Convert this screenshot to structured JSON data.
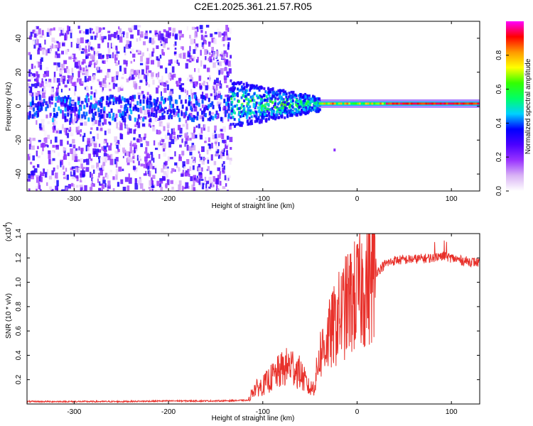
{
  "title": "C2E1.2025.361.21.57.R05",
  "chart_data": [
    {
      "type": "heatmap",
      "xlabel": "Height of straight line (km)",
      "ylabel": "Frequency (Hz)",
      "xlim": [
        -350,
        130
      ],
      "ylim": [
        -50,
        50
      ],
      "xticks": [
        -300,
        -200,
        -100,
        0,
        100
      ],
      "xtick_labels": [
        "-300",
        "-200",
        "-100",
        "0",
        "100"
      ],
      "yticks": [
        -40,
        -20,
        0,
        20,
        40
      ],
      "ytick_labels": [
        "-40",
        "-20",
        "0",
        "20",
        "40"
      ],
      "colorbar": {
        "label": "Normalized spectral amplitude",
        "range": [
          0,
          1
        ],
        "ticks": [
          0.0,
          0.2,
          0.4,
          0.6,
          0.8
        ],
        "tick_labels": [
          "0.0",
          "0.2",
          "0.4",
          "0.6",
          "0.8"
        ],
        "colors": [
          "#ffffff",
          "#d9b3f5",
          "#9933ff",
          "#4b00ff",
          "#0000ff",
          "#00d0ff",
          "#00ff66",
          "#33ff00",
          "#ffff00",
          "#ff9900",
          "#ff0000",
          "#ff00ff"
        ]
      },
      "regions": [
        {
          "x": [
            -350,
            -135
          ],
          "description_level": 0.15,
          "freq_span": [
            -50,
            48
          ]
        },
        {
          "x": [
            -135,
            -40
          ],
          "level": 0.5,
          "freq_span": [
            -10,
            14
          ]
        },
        {
          "x": [
            -40,
            130
          ],
          "level": 0.85,
          "freq_span": [
            0,
            3
          ]
        }
      ]
    },
    {
      "type": "line",
      "xlabel": "Height of straight line (km)",
      "ylabel": "SNR (10 * v/v)",
      "yexponent_label": "(x10",
      "yexponent_value": "4",
      "yexponent_close": ")",
      "xlim": [
        -350,
        130
      ],
      "ylim": [
        0,
        1.4
      ],
      "xticks": [
        -300,
        -200,
        -100,
        0,
        100
      ],
      "xtick_labels": [
        "-300",
        "-200",
        "-100",
        "0",
        "100"
      ],
      "yticks": [
        0.2,
        0.4,
        0.6,
        0.8,
        1.0,
        1.2,
        1.4
      ],
      "ytick_labels": [
        "0.2",
        "0.4",
        "0.6",
        "0.8",
        "1.0",
        "1.2",
        "1.4"
      ],
      "series": [
        {
          "name": "SNR",
          "color": "#e8302a",
          "x": [
            -350,
            -300,
            -250,
            -200,
            -150,
            -115,
            -110,
            -100,
            -90,
            -80,
            -70,
            -60,
            -50,
            -45,
            -40,
            -30,
            -20,
            -10,
            0,
            10,
            20,
            30,
            40,
            60,
            80,
            90,
            100,
            110,
            120,
            130
          ],
          "y": [
            0.02,
            0.02,
            0.02,
            0.025,
            0.025,
            0.03,
            0.12,
            0.15,
            0.22,
            0.28,
            0.32,
            0.25,
            0.12,
            0.15,
            0.4,
            0.55,
            0.7,
            0.82,
            0.9,
            1.0,
            1.08,
            1.15,
            1.18,
            1.19,
            1.2,
            1.22,
            1.2,
            1.18,
            1.17,
            1.16
          ]
        }
      ]
    }
  ]
}
